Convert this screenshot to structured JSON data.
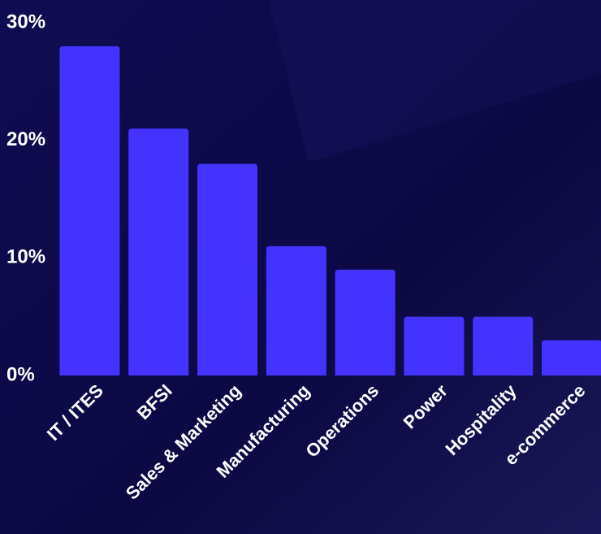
{
  "chart_data": {
    "type": "bar",
    "categories": [
      "IT / ITES",
      "BFSI",
      "Sales & Marketing",
      "Manufacturing",
      "Operations",
      "Power",
      "Hospitality",
      "e-commerce"
    ],
    "values": [
      28,
      21,
      18,
      11,
      9,
      5,
      5,
      3
    ],
    "color": "#4433ff",
    "ylim": [
      0,
      30
    ],
    "yticks": [
      {
        "value": 0,
        "label": "0%"
      },
      {
        "value": 10,
        "label": "10%"
      },
      {
        "value": 20,
        "label": "20%"
      },
      {
        "value": 30,
        "label": "30%"
      }
    ],
    "grid": false
  }
}
